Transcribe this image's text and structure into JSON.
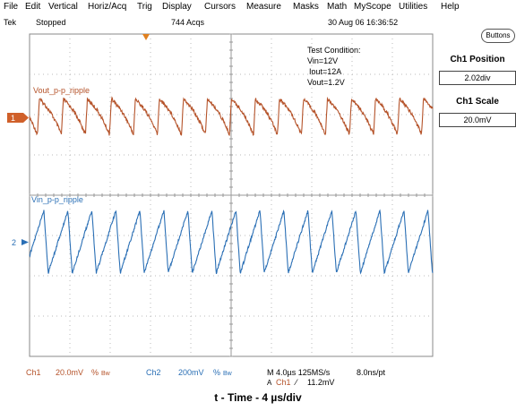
{
  "menu": [
    "File",
    "Edit",
    "Vertical",
    "Horiz/Acq",
    "Trig",
    "Display",
    "Cursors",
    "Measure",
    "Masks",
    "Math",
    "MyScope",
    "Utilities",
    "Help"
  ],
  "status": {
    "brand": "Tek",
    "state": "Stopped",
    "acqs": "744 Acqs",
    "datetime": "30 Aug 06 16:36:52"
  },
  "side_panel": {
    "buttons_label": "Buttons",
    "ch1_position_label": "Ch1 Position",
    "ch1_position_value": "2.02div",
    "ch1_scale_label": "Ch1 Scale",
    "ch1_scale_value": "20.0mV"
  },
  "test_condition": {
    "title": "Test Condition:",
    "line1": "Vin=12V",
    "line2": "Iout=12A",
    "line3": "Vout=1.2V"
  },
  "traces": {
    "ch1_label": "Vout_p-p_ripple",
    "ch1_marker": "1",
    "ch2_label": "Vin_p-p_ripple",
    "ch2_marker": "2",
    "ch1_color": "#b5532a",
    "ch2_color": "#2a6fb5"
  },
  "bottom_bar": {
    "ch1": "Ch1",
    "ch1_scale": "20.0mV",
    "ch1_bw": "Bw",
    "ch2": "Ch2",
    "ch2_scale": "200mV",
    "ch2_bw": "Bw",
    "timebase": "M 4.0µs 125MS/s",
    "resolution": "8.0ns/pt",
    "trigger_src": "Ch1",
    "trigger_level": "11.2mV"
  },
  "caption": "t - Time - 4 µs/div"
}
